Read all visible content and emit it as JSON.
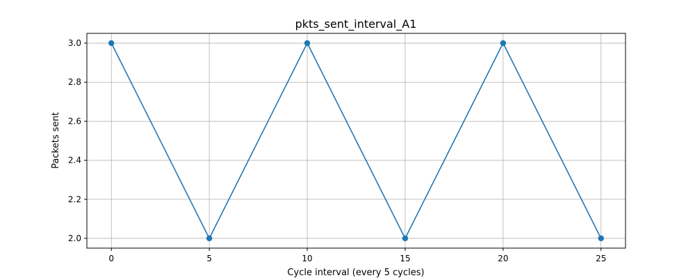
{
  "chart_data": {
    "type": "line",
    "title": "pkts_sent_interval_A1",
    "xlabel": "Cycle interval (every 5 cycles)",
    "ylabel": "Packets sent",
    "x": [
      0,
      5,
      10,
      15,
      20,
      25
    ],
    "series": [
      {
        "values": [
          3.0,
          2.0,
          3.0,
          2.0,
          3.0,
          2.0
        ],
        "color": "#1f77b4",
        "marker": "circle"
      }
    ],
    "xlim": [
      -1.25,
      26.25
    ],
    "ylim": [
      1.95,
      3.05
    ],
    "xticks": [
      0,
      5,
      10,
      15,
      20,
      25
    ],
    "xtick_labels": [
      "0",
      "5",
      "10",
      "15",
      "20",
      "25"
    ],
    "yticks": [
      2.0,
      2.2,
      2.4,
      2.6,
      2.8,
      3.0
    ],
    "ytick_labels": [
      "2.0",
      "2.2",
      "2.4",
      "2.6",
      "2.8",
      "3.0"
    ],
    "grid": true
  }
}
